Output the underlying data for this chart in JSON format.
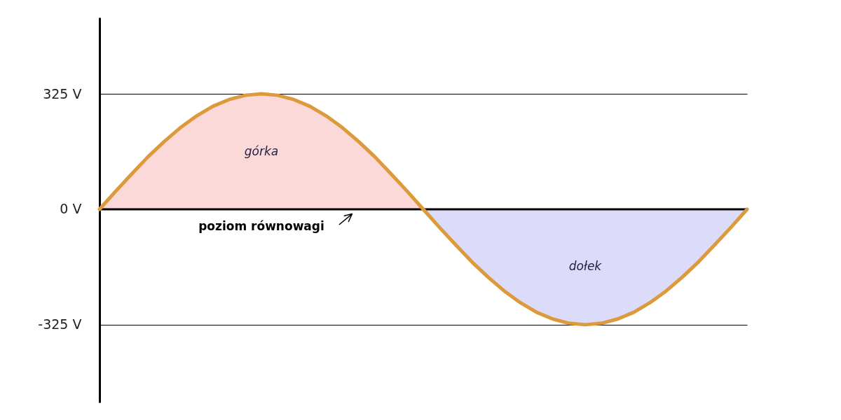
{
  "chart_data": {
    "type": "area",
    "categories": [
      null,
      null,
      null,
      null,
      null,
      null,
      null,
      null,
      null,
      null,
      null,
      null,
      null,
      null,
      null,
      null,
      null,
      null,
      null,
      null,
      null,
      null,
      null,
      null,
      null,
      null,
      null,
      null,
      null,
      null,
      null,
      null,
      null,
      null,
      null,
      null,
      null,
      null,
      null,
      null,
      null
    ],
    "series": [
      {
        "name": "górka",
        "color": "#fcd9d9",
        "values": [
          0,
          51,
          100,
          148,
          191,
          230,
          263,
          290,
          309,
          321,
          325,
          321,
          309,
          290,
          263,
          230,
          191,
          148,
          100,
          51,
          0,
          null,
          null,
          null,
          null,
          null,
          null,
          null,
          null,
          null,
          null,
          null,
          null,
          null,
          null,
          null,
          null,
          null,
          null,
          null,
          null
        ]
      },
      {
        "name": "dołek",
        "color": "#dcdcfa",
        "values": [
          null,
          null,
          null,
          null,
          null,
          null,
          null,
          null,
          null,
          null,
          null,
          null,
          null,
          null,
          null,
          null,
          null,
          null,
          null,
          null,
          0,
          -51,
          -100,
          -148,
          -191,
          -230,
          -263,
          -290,
          -309,
          -321,
          -325,
          -321,
          -309,
          -290,
          -263,
          -230,
          -191,
          -148,
          -100,
          -51,
          0
        ]
      },
      {
        "type": "line",
        "color": "#dd9a3c",
        "values": [
          0,
          51,
          100,
          148,
          191,
          230,
          263,
          290,
          309,
          321,
          325,
          321,
          309,
          290,
          263,
          230,
          191,
          148,
          100,
          51,
          0,
          -51,
          -100,
          -148,
          -191,
          -230,
          -263,
          -290,
          -309,
          -321,
          -325,
          -321,
          -309,
          -290,
          -263,
          -230,
          -191,
          -148,
          -100,
          -51,
          0
        ]
      }
    ],
    "ylim": [
      -544,
      540
    ],
    "yticks": [
      {
        "value": 325,
        "label": "325 V"
      },
      {
        "value": 0,
        "label": "0 V"
      },
      {
        "value": -325,
        "label": "-325 V"
      }
    ],
    "grid": "y",
    "tick_labels": "y",
    "ref_lines": [
      {
        "axis": "y",
        "value": 0,
        "label": "poziom równowagi",
        "color": "#000000"
      }
    ]
  }
}
